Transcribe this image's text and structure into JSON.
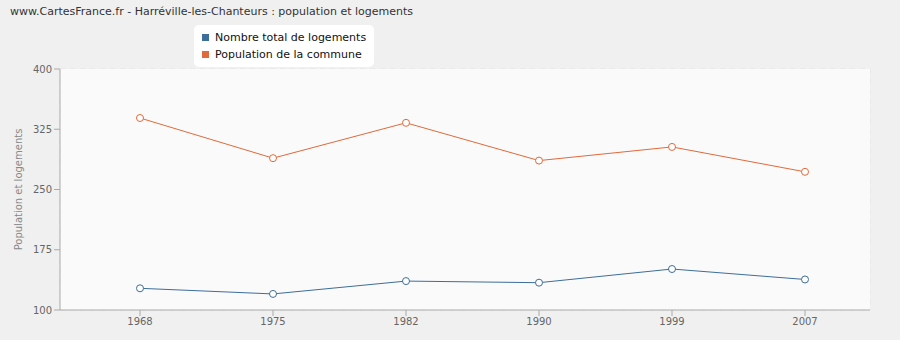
{
  "chart_data": {
    "type": "line",
    "title": "www.CartesFrance.fr - Harréville-les-Chanteurs : population et logements",
    "y_label": "Population et logements",
    "categories": [
      "1968",
      "1975",
      "1982",
      "1990",
      "1999",
      "2007"
    ],
    "series": [
      {
        "name": "Nombre total de logements",
        "color": "#3d6d9b",
        "values": [
          127,
          120,
          136,
          134,
          151,
          138
        ],
        "marker": "circle"
      },
      {
        "name": "Population de la commune",
        "color": "#e06a3b",
        "values": [
          339,
          289,
          333,
          286,
          303,
          272
        ],
        "marker": "circle"
      }
    ],
    "ylim": [
      100,
      400
    ],
    "yticks": [
      100,
      175,
      250,
      325,
      400
    ],
    "grid": true,
    "legend": "top-left"
  }
}
